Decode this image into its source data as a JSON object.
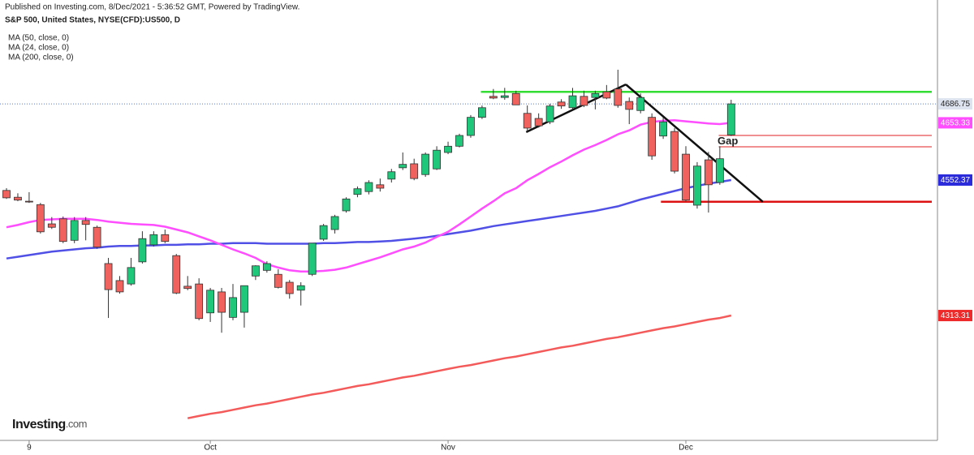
{
  "header": {
    "published": "Published on Investing.com, 8/Dec/2021 - 5:36:52 GMT, Powered by TradingView.",
    "symbol": "S&P 500, United States, NYSE(CFD):US500, D"
  },
  "logo": {
    "brand": "Investing",
    "domain": ".com"
  },
  "chart_data": {
    "type": "candlestick",
    "categories": [
      null,
      null,
      "9",
      null,
      null,
      null,
      null,
      null,
      null,
      null,
      null,
      null,
      null,
      null,
      null,
      null,
      null,
      null,
      "Oct",
      null,
      null,
      null,
      null,
      null,
      null,
      null,
      null,
      null,
      null,
      null,
      null,
      null,
      null,
      null,
      null,
      null,
      null,
      null,
      null,
      "Nov",
      null,
      null,
      null,
      null,
      null,
      null,
      null,
      null,
      null,
      null,
      null,
      null,
      null,
      null,
      null,
      null,
      null,
      null,
      null,
      null,
      "Dec",
      null,
      null,
      null,
      null
    ],
    "ohlc": {
      "open": [
        4534,
        4522,
        4515,
        4509,
        4475,
        4484,
        4446,
        4481,
        4469,
        4405,
        4375,
        4369,
        4408,
        4438,
        4456,
        4419,
        4365,
        4369,
        4318,
        4355,
        4310,
        4319,
        4383,
        4393,
        4386,
        4372,
        4358,
        4386,
        4448,
        4465,
        4498,
        4527,
        4532,
        4544,
        4554,
        4574,
        4581,
        4562,
        4572,
        4601,
        4612,
        4631,
        4663,
        4700,
        4698,
        4705,
        4670,
        4661,
        4655,
        4690,
        4680,
        4700,
        4698,
        4708,
        4713,
        4691,
        4675,
        4663,
        4630,
        4638,
        4598,
        4508,
        4588,
        4548,
        4632
      ],
      "high": [
        4538,
        4529,
        4531,
        4512,
        4487,
        4488,
        4487,
        4487,
        4472,
        4415,
        4383,
        4415,
        4462,
        4462,
        4465,
        4422,
        4383,
        4379,
        4362,
        4362,
        4369,
        4366,
        4402,
        4409,
        4395,
        4376,
        4372,
        4441,
        4475,
        4491,
        4522,
        4541,
        4552,
        4555,
        4572,
        4601,
        4590,
        4601,
        4612,
        4620,
        4634,
        4667,
        4684,
        4713,
        4715,
        4710,
        4684,
        4670,
        4687,
        4695,
        4715,
        4710,
        4710,
        4720,
        4747,
        4698,
        4705,
        4670,
        4663,
        4644,
        4612,
        4584,
        4602,
        4612,
        4694
      ],
      "low": [
        4519,
        4515,
        4512,
        4458,
        4466,
        4441,
        4441,
        4446,
        4431,
        4309,
        4352,
        4366,
        4405,
        4435,
        4441,
        4351,
        4358,
        4305,
        4302,
        4283,
        4305,
        4292,
        4376,
        4389,
        4361,
        4343,
        4331,
        4383,
        4445,
        4458,
        4495,
        4522,
        4527,
        4532,
        4548,
        4570,
        4552,
        4558,
        4570,
        4598,
        4610,
        4627,
        4660,
        4695,
        4694,
        4685,
        4638,
        4645,
        4651,
        4678,
        4677,
        4681,
        4677,
        4695,
        4680,
        4651,
        4670,
        4588,
        4625,
        4564,
        4515,
        4502,
        4495,
        4544,
        4630
      ],
      "close": [
        4521,
        4517,
        4514,
        4461,
        4469,
        4444,
        4481,
        4474,
        4434,
        4359,
        4355,
        4398,
        4449,
        4456,
        4444,
        4353,
        4361,
        4308,
        4358,
        4319,
        4345,
        4366,
        4401,
        4405,
        4363,
        4352,
        4366,
        4441,
        4472,
        4488,
        4519,
        4537,
        4548,
        4538,
        4567,
        4580,
        4555,
        4598,
        4605,
        4612,
        4631,
        4663,
        4680,
        4697,
        4701,
        4685,
        4644,
        4648,
        4683,
        4683,
        4701,
        4684,
        4705,
        4697,
        4684,
        4677,
        4698,
        4595,
        4655,
        4568,
        4517,
        4577,
        4544,
        4590,
        4686.75
      ]
    },
    "up_color": "#1fc77a",
    "down_color": "#f0625d",
    "series": [
      {
        "name": "MA (50, close, 0)",
        "color": "#5050e6",
        "values": [
          4414,
          4417,
          4420,
          4423,
          4426,
          4428,
          4430,
          4432,
          4433,
          4435,
          4436,
          4436,
          4437,
          4437,
          4438,
          4438,
          4439,
          4439,
          4440,
          4440,
          4441,
          4441,
          4441,
          4440,
          4440,
          4440,
          4440,
          4440,
          4441,
          4441,
          4442,
          4443,
          4443,
          4444,
          4445,
          4447,
          4449,
          4451,
          4454,
          4457,
          4460,
          4463,
          4467,
          4471,
          4474,
          4477,
          4480,
          4483,
          4486,
          4489,
          4492,
          4495,
          4498,
          4502,
          4506,
          4512,
          4518,
          4523,
          4528,
          4533,
          4538,
          4542,
          4546,
          4549,
          4552.37
        ]
      },
      {
        "name": "MA (24, close, 0)",
        "color": "#ff4dff",
        "values": [
          4469,
          4473,
          4478,
          4482,
          4483,
          4484,
          4484,
          4484,
          4482,
          4479,
          4477,
          4475,
          4474,
          4473,
          4470,
          4465,
          4460,
          4453,
          4446,
          4438,
          4430,
          4423,
          4415,
          4404,
          4398,
          4393,
          4391,
          4391,
          4392,
          4394,
          4398,
          4404,
          4410,
          4416,
          4423,
          4430,
          4435,
          4442,
          4452,
          4461,
          4474,
          4488,
          4502,
          4515,
          4529,
          4538,
          4552,
          4563,
          4575,
          4585,
          4596,
          4606,
          4614,
          4623,
          4633,
          4640,
          4650,
          4655,
          4657,
          4658,
          4656,
          4654,
          4652,
          4651,
          4653.33
        ]
      },
      {
        "name": "MA (200, close, 0)",
        "color": "#f45a5a",
        "values": [
          null,
          null,
          null,
          null,
          null,
          null,
          null,
          null,
          null,
          null,
          null,
          null,
          null,
          null,
          null,
          null,
          4132,
          4136,
          4140,
          4143,
          4147,
          4151,
          4155,
          4158,
          4162,
          4166,
          4170,
          4174,
          4177,
          4181,
          4185,
          4189,
          4192,
          4196,
          4200,
          4204,
          4207,
          4211,
          4215,
          4219,
          4223,
          4226,
          4230,
          4234,
          4238,
          4241,
          4245,
          4249,
          4253,
          4257,
          4260,
          4264,
          4268,
          4272,
          4275,
          4279,
          4283,
          4287,
          4291,
          4294,
          4298,
          4302,
          4306,
          4309,
          4313.31
        ]
      }
    ],
    "price_labels": [
      {
        "value": 4686.75,
        "color": "#dde4f0",
        "text_color": "#222222"
      },
      {
        "value": 4653.33,
        "color": "#ff4dff",
        "text_color": "#ffffff"
      },
      {
        "value": 4552.37,
        "color": "#2b2bdc",
        "text_color": "#ffffff"
      },
      {
        "value": 4313.31,
        "color": "#ee2a2a",
        "text_color": "#ffffff"
      }
    ],
    "levels": [
      {
        "value": 4708,
        "from": 41.9,
        "color": "#33dd33",
        "width": 2.5
      },
      {
        "value": 4631,
        "from": 62.9,
        "color": "#e22222",
        "width": 1
      },
      {
        "value": 4611,
        "from": 62.9,
        "color": "#e22222",
        "width": 1
      },
      {
        "value": 4514,
        "from": 57.8,
        "color": "#dd1111",
        "width": 2.5
      }
    ],
    "trendlines": [
      {
        "x": [
          45.9,
          54.7
        ],
        "y": [
          4637,
          4721
        ]
      },
      {
        "x": [
          54.7,
          66.8
        ],
        "y": [
          4721,
          4514
        ]
      }
    ],
    "annotations": [
      {
        "text": "Gap",
        "x": 62.8,
        "y": 4620
      }
    ],
    "ylim": [
      4093,
      4870
    ]
  }
}
